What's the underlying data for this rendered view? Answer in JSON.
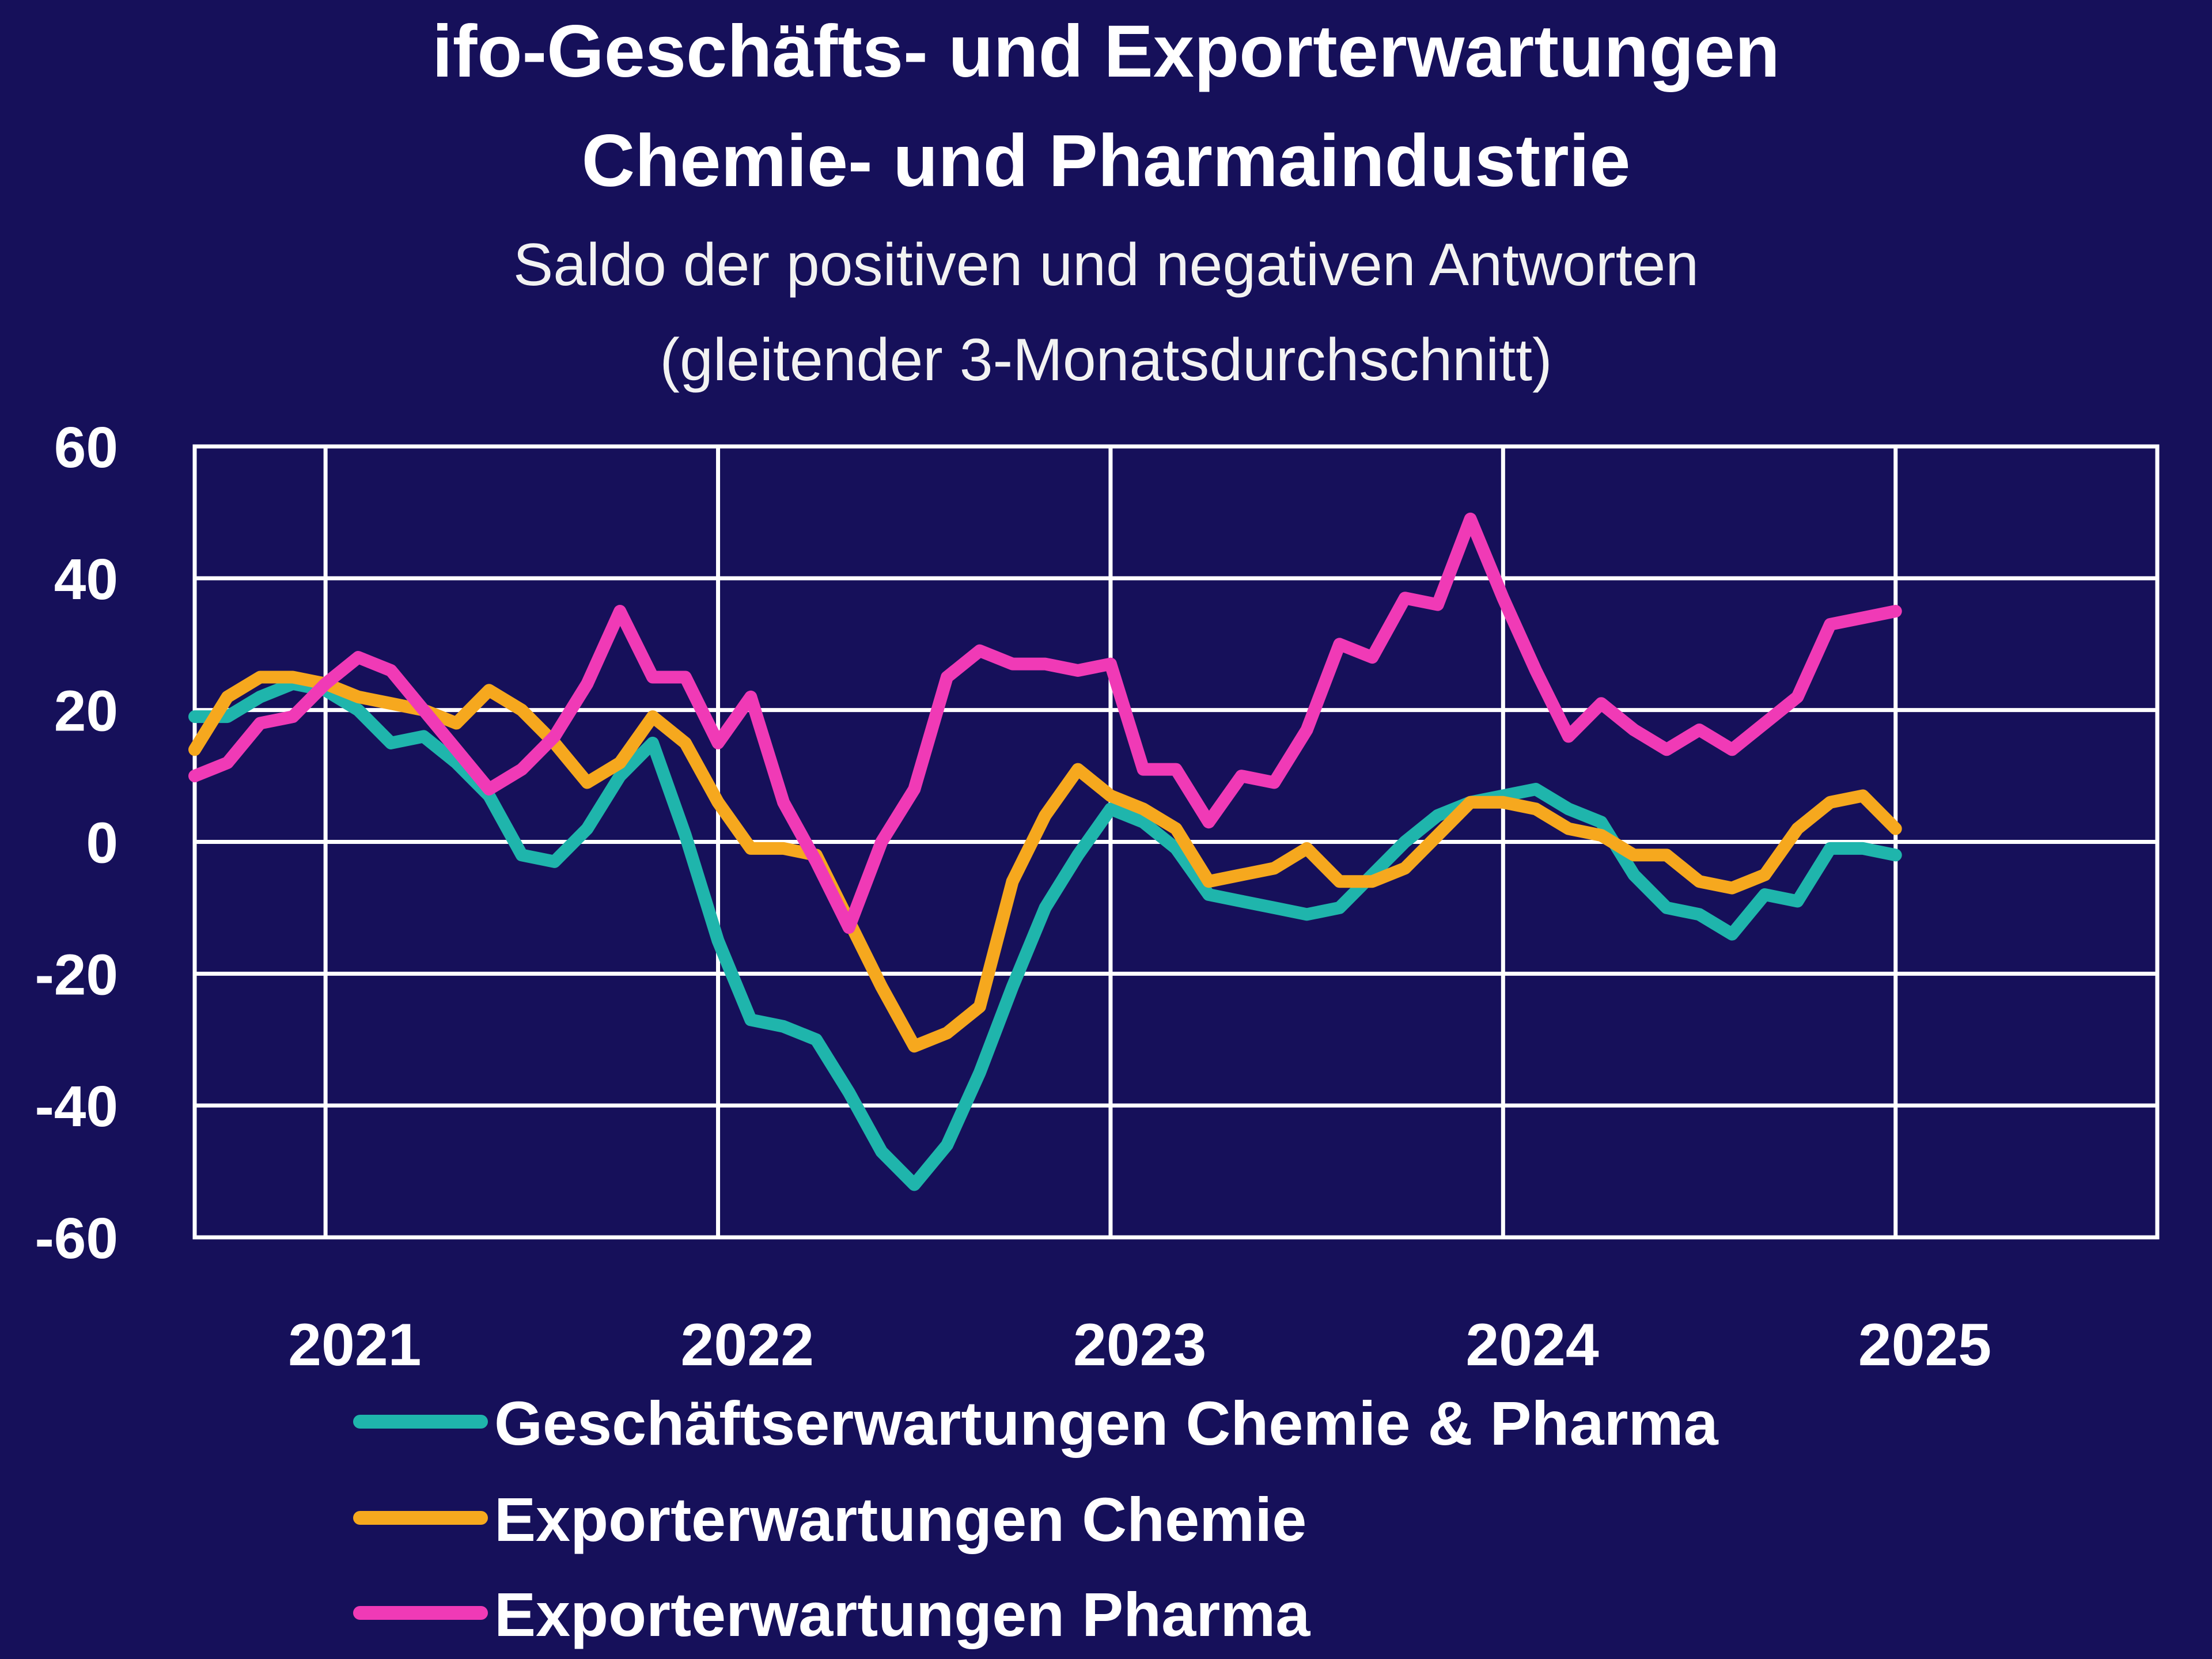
{
  "chart_data": {
    "type": "line",
    "title_line1": "ifo-Geschäfts- und Exporterwartungen",
    "title_line2": "Chemie- und Pharmaindustrie",
    "subtitle_line1": "Saldo der positiven und negativen Antworten",
    "subtitle_line2": "(gleitender 3-Monatsdurchschnitt)",
    "xlabel": "",
    "ylabel": "",
    "ylim": [
      -60,
      60
    ],
    "yticks": [
      "60",
      "40",
      "20",
      "0",
      "-20",
      "-40",
      "-60"
    ],
    "ytick_values": [
      60,
      40,
      20,
      0,
      -20,
      -40,
      -60
    ],
    "xlim": [
      "2020-09",
      "2025-09"
    ],
    "xticks": [
      "2021",
      "2022",
      "2023",
      "2024",
      "2025"
    ],
    "grid": true,
    "legend_position": "bottom",
    "series": [
      {
        "name": "Geschäftserwartungen Chemie & Pharma",
        "color": "#1fb5ac",
        "points": [
          [
            "2020-09",
            19
          ],
          [
            "2020-10",
            19
          ],
          [
            "2020-11",
            22
          ],
          [
            "2020-12",
            24
          ],
          [
            "2021-01",
            23
          ],
          [
            "2021-02",
            20
          ],
          [
            "2021-03",
            15
          ],
          [
            "2021-04",
            16
          ],
          [
            "2021-05",
            12
          ],
          [
            "2021-06",
            7
          ],
          [
            "2021-07",
            -2
          ],
          [
            "2021-08",
            -3
          ],
          [
            "2021-09",
            2
          ],
          [
            "2021-10",
            10
          ],
          [
            "2021-11",
            15
          ],
          [
            "2021-12",
            1
          ],
          [
            "2022-01",
            -15
          ],
          [
            "2022-02",
            -27
          ],
          [
            "2022-03",
            -28
          ],
          [
            "2022-04",
            -30
          ],
          [
            "2022-05",
            -38
          ],
          [
            "2022-06",
            -47
          ],
          [
            "2022-07",
            -52
          ],
          [
            "2022-08",
            -46
          ],
          [
            "2022-09",
            -35
          ],
          [
            "2022-10",
            -22
          ],
          [
            "2022-11",
            -10
          ],
          [
            "2022-12",
            -2
          ],
          [
            "2023-01",
            5
          ],
          [
            "2023-02",
            3
          ],
          [
            "2023-03",
            -1
          ],
          [
            "2023-04",
            -8
          ],
          [
            "2023-05",
            -9
          ],
          [
            "2023-06",
            -10
          ],
          [
            "2023-07",
            -11
          ],
          [
            "2023-08",
            -10
          ],
          [
            "2023-09",
            -5
          ],
          [
            "2023-10",
            0
          ],
          [
            "2023-11",
            4
          ],
          [
            "2023-12",
            6
          ],
          [
            "2024-01",
            7
          ],
          [
            "2024-02",
            8
          ],
          [
            "2024-03",
            5
          ],
          [
            "2024-04",
            3
          ],
          [
            "2024-05",
            -5
          ],
          [
            "2024-06",
            -10
          ],
          [
            "2024-07",
            -11
          ],
          [
            "2024-08",
            -14
          ],
          [
            "2024-09",
            -8
          ],
          [
            "2024-10",
            -9
          ],
          [
            "2024-11",
            -1
          ],
          [
            "2024-12",
            -1
          ],
          [
            "2025-01",
            -2
          ]
        ]
      },
      {
        "name": "Exporterwartungen Chemie",
        "color": "#f6a81e",
        "points": [
          [
            "2020-09",
            14
          ],
          [
            "2020-10",
            22
          ],
          [
            "2020-11",
            25
          ],
          [
            "2020-12",
            25
          ],
          [
            "2021-01",
            24
          ],
          [
            "2021-02",
            22
          ],
          [
            "2021-03",
            21
          ],
          [
            "2021-04",
            20
          ],
          [
            "2021-05",
            18
          ],
          [
            "2021-06",
            23
          ],
          [
            "2021-07",
            20
          ],
          [
            "2021-08",
            15
          ],
          [
            "2021-09",
            9
          ],
          [
            "2021-10",
            12
          ],
          [
            "2021-11",
            19
          ],
          [
            "2021-12",
            15
          ],
          [
            "2022-01",
            6
          ],
          [
            "2022-02",
            -1
          ],
          [
            "2022-03",
            -1
          ],
          [
            "2022-04",
            -2
          ],
          [
            "2022-05",
            -12
          ],
          [
            "2022-06",
            -22
          ],
          [
            "2022-07",
            -31
          ],
          [
            "2022-08",
            -29
          ],
          [
            "2022-09",
            -25
          ],
          [
            "2022-10",
            -6
          ],
          [
            "2022-11",
            4
          ],
          [
            "2022-12",
            11
          ],
          [
            "2023-01",
            7
          ],
          [
            "2023-02",
            5
          ],
          [
            "2023-03",
            2
          ],
          [
            "2023-04",
            -6
          ],
          [
            "2023-05",
            -5
          ],
          [
            "2023-06",
            -4
          ],
          [
            "2023-07",
            -1
          ],
          [
            "2023-08",
            -6
          ],
          [
            "2023-09",
            -6
          ],
          [
            "2023-10",
            -4
          ],
          [
            "2023-11",
            1
          ],
          [
            "2023-12",
            6
          ],
          [
            "2024-01",
            6
          ],
          [
            "2024-02",
            5
          ],
          [
            "2024-03",
            2
          ],
          [
            "2024-04",
            1
          ],
          [
            "2024-05",
            -2
          ],
          [
            "2024-06",
            -2
          ],
          [
            "2024-07",
            -6
          ],
          [
            "2024-08",
            -7
          ],
          [
            "2024-09",
            -5
          ],
          [
            "2024-10",
            2
          ],
          [
            "2024-11",
            6
          ],
          [
            "2024-12",
            7
          ],
          [
            "2025-01",
            2
          ]
        ]
      },
      {
        "name": "Exporterwartungen Pharma",
        "color": "#f03ab6",
        "points": [
          [
            "2020-09",
            10
          ],
          [
            "2020-10",
            12
          ],
          [
            "2020-11",
            18
          ],
          [
            "2020-12",
            19
          ],
          [
            "2021-01",
            24
          ],
          [
            "2021-02",
            28
          ],
          [
            "2021-03",
            26
          ],
          [
            "2021-04",
            20
          ],
          [
            "2021-05",
            14
          ],
          [
            "2021-06",
            8
          ],
          [
            "2021-07",
            11
          ],
          [
            "2021-08",
            16
          ],
          [
            "2021-09",
            24
          ],
          [
            "2021-10",
            35
          ],
          [
            "2021-11",
            25
          ],
          [
            "2021-12",
            25
          ],
          [
            "2022-01",
            15
          ],
          [
            "2022-02",
            22
          ],
          [
            "2022-03",
            6
          ],
          [
            "2022-04",
            -3
          ],
          [
            "2022-05",
            -13
          ],
          [
            "2022-06",
            0
          ],
          [
            "2022-07",
            8
          ],
          [
            "2022-08",
            25
          ],
          [
            "2022-09",
            29
          ],
          [
            "2022-10",
            27
          ],
          [
            "2022-11",
            27
          ],
          [
            "2022-12",
            26
          ],
          [
            "2023-01",
            27
          ],
          [
            "2023-02",
            11
          ],
          [
            "2023-03",
            11
          ],
          [
            "2023-04",
            3
          ],
          [
            "2023-05",
            10
          ],
          [
            "2023-06",
            9
          ],
          [
            "2023-07",
            17
          ],
          [
            "2023-08",
            30
          ],
          [
            "2023-09",
            28
          ],
          [
            "2023-10",
            37
          ],
          [
            "2023-11",
            36
          ],
          [
            "2023-12",
            49
          ],
          [
            "2024-01",
            37
          ],
          [
            "2024-02",
            26
          ],
          [
            "2024-03",
            16
          ],
          [
            "2024-04",
            21
          ],
          [
            "2024-05",
            17
          ],
          [
            "2024-06",
            14
          ],
          [
            "2024-07",
            17
          ],
          [
            "2024-08",
            14
          ],
          [
            "2024-09",
            18
          ],
          [
            "2024-10",
            22
          ],
          [
            "2024-11",
            33
          ],
          [
            "2024-12",
            34
          ],
          [
            "2025-01",
            35
          ]
        ]
      }
    ]
  }
}
